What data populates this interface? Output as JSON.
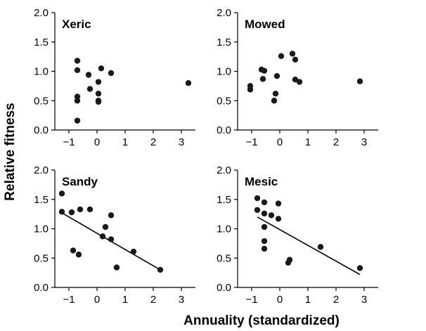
{
  "figure": {
    "xlabel": "Annuality (standardized)",
    "ylabel": "Relative fitness"
  },
  "chart_data": [
    {
      "type": "scatter",
      "title": "Xeric",
      "xlim": [
        -1.5,
        3.5
      ],
      "ylim": [
        0,
        2
      ],
      "xticks": [
        "−1",
        "0",
        "1",
        "2",
        "3"
      ],
      "yticks": [
        "0.0",
        "0.5",
        "1.0",
        "1.5",
        "2.0"
      ],
      "points": [
        {
          "x": -0.7,
          "y": 1.18
        },
        {
          "x": -0.7,
          "y": 1.02
        },
        {
          "x": -0.7,
          "y": 0.57
        },
        {
          "x": -0.7,
          "y": 0.5
        },
        {
          "x": -0.7,
          "y": 0.16
        },
        {
          "x": -0.3,
          "y": 0.94
        },
        {
          "x": -0.25,
          "y": 0.7
        },
        {
          "x": 0.05,
          "y": 0.82
        },
        {
          "x": 0.05,
          "y": 0.62
        },
        {
          "x": 0.05,
          "y": 0.5
        },
        {
          "x": 0.05,
          "y": 0.48
        },
        {
          "x": 0.15,
          "y": 1.05
        },
        {
          "x": 0.5,
          "y": 0.97
        },
        {
          "x": 3.25,
          "y": 0.8
        }
      ],
      "fit": null
    },
    {
      "type": "scatter",
      "title": "Mowed",
      "xlim": [
        -1.5,
        3.5
      ],
      "ylim": [
        0,
        2
      ],
      "xticks": [
        "−1",
        "0",
        "1",
        "2",
        "3"
      ],
      "yticks": [
        "0.0",
        "0.5",
        "1.0",
        "1.5",
        "2.0"
      ],
      "points": [
        {
          "x": -1.05,
          "y": 0.75
        },
        {
          "x": -1.05,
          "y": 0.69
        },
        {
          "x": -0.65,
          "y": 1.03
        },
        {
          "x": -0.6,
          "y": 0.87
        },
        {
          "x": -0.55,
          "y": 1.01
        },
        {
          "x": -0.2,
          "y": 0.5
        },
        {
          "x": -0.15,
          "y": 0.62
        },
        {
          "x": -0.1,
          "y": 0.92
        },
        {
          "x": 0.05,
          "y": 1.26
        },
        {
          "x": 0.45,
          "y": 1.3
        },
        {
          "x": 0.55,
          "y": 1.2
        },
        {
          "x": 0.55,
          "y": 0.86
        },
        {
          "x": 0.7,
          "y": 0.82
        },
        {
          "x": 2.85,
          "y": 0.83
        }
      ],
      "fit": null
    },
    {
      "type": "scatter",
      "title": "Sandy",
      "xlim": [
        -1.5,
        3.5
      ],
      "ylim": [
        0,
        2
      ],
      "xticks": [
        "−1",
        "0",
        "1",
        "2",
        "3"
      ],
      "yticks": [
        "0.0",
        "0.5",
        "1.0",
        "1.5",
        "2.0"
      ],
      "points": [
        {
          "x": -1.25,
          "y": 1.6
        },
        {
          "x": -1.25,
          "y": 1.29
        },
        {
          "x": -0.9,
          "y": 1.28
        },
        {
          "x": -0.85,
          "y": 0.63
        },
        {
          "x": -0.65,
          "y": 0.56
        },
        {
          "x": -0.6,
          "y": 1.33
        },
        {
          "x": -0.25,
          "y": 1.33
        },
        {
          "x": 0.2,
          "y": 0.87
        },
        {
          "x": 0.3,
          "y": 1.03
        },
        {
          "x": 0.5,
          "y": 1.23
        },
        {
          "x": 0.5,
          "y": 0.82
        },
        {
          "x": 0.7,
          "y": 0.34
        },
        {
          "x": 1.3,
          "y": 0.61
        },
        {
          "x": 2.25,
          "y": 0.3
        }
      ],
      "fit": {
        "x": [
          -1.25,
          2.25
        ],
        "y": [
          1.27,
          0.3
        ]
      }
    },
    {
      "type": "scatter",
      "title": "Mesic",
      "xlim": [
        -1.5,
        3.5
      ],
      "ylim": [
        0,
        2
      ],
      "xticks": [
        "−1",
        "0",
        "1",
        "2",
        "3"
      ],
      "yticks": [
        "0.0",
        "0.5",
        "1.0",
        "1.5",
        "2.0"
      ],
      "points": [
        {
          "x": -0.8,
          "y": 1.52
        },
        {
          "x": -0.8,
          "y": 1.32
        },
        {
          "x": -0.55,
          "y": 1.45
        },
        {
          "x": -0.55,
          "y": 1.26
        },
        {
          "x": -0.55,
          "y": 1.03
        },
        {
          "x": -0.55,
          "y": 0.79
        },
        {
          "x": -0.55,
          "y": 0.66
        },
        {
          "x": -0.3,
          "y": 1.23
        },
        {
          "x": -0.05,
          "y": 1.43
        },
        {
          "x": -0.05,
          "y": 1.17
        },
        {
          "x": 0.3,
          "y": 0.42
        },
        {
          "x": 0.35,
          "y": 0.47
        },
        {
          "x": 1.45,
          "y": 0.69
        },
        {
          "x": 2.85,
          "y": 0.33
        }
      ],
      "fit": {
        "x": [
          -0.8,
          2.85
        ],
        "y": [
          1.2,
          0.22
        ]
      }
    }
  ]
}
